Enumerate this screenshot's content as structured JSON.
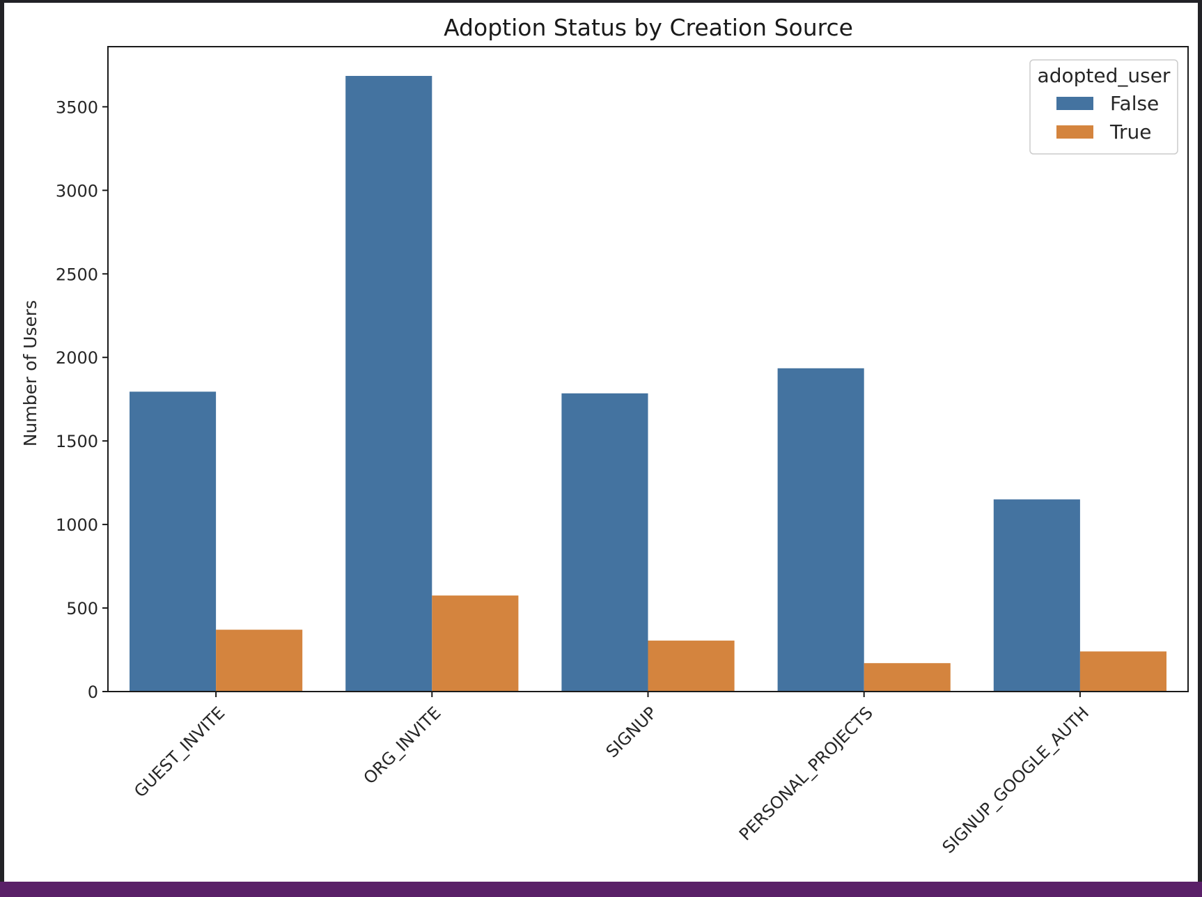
{
  "chart_data": {
    "type": "bar",
    "title": "Adoption Status by Creation Source",
    "xlabel": "",
    "ylabel": "Number of Users",
    "categories": [
      "GUEST_INVITE",
      "ORG_INVITE",
      "SIGNUP",
      "PERSONAL_PROJECTS",
      "SIGNUP_GOOGLE_AUTH"
    ],
    "series": [
      {
        "name": "False",
        "values": [
          1795,
          3685,
          1785,
          1935,
          1150
        ],
        "color": "#4473a0"
      },
      {
        "name": "True",
        "values": [
          370,
          575,
          305,
          170,
          240
        ],
        "color": "#d4843e"
      }
    ],
    "ylim": [
      0,
      3860
    ],
    "yticks": [
      0,
      500,
      1000,
      1500,
      2000,
      2500,
      3000,
      3500
    ],
    "legend": {
      "title": "adopted_user",
      "placement": "top-right"
    },
    "grid": false
  }
}
